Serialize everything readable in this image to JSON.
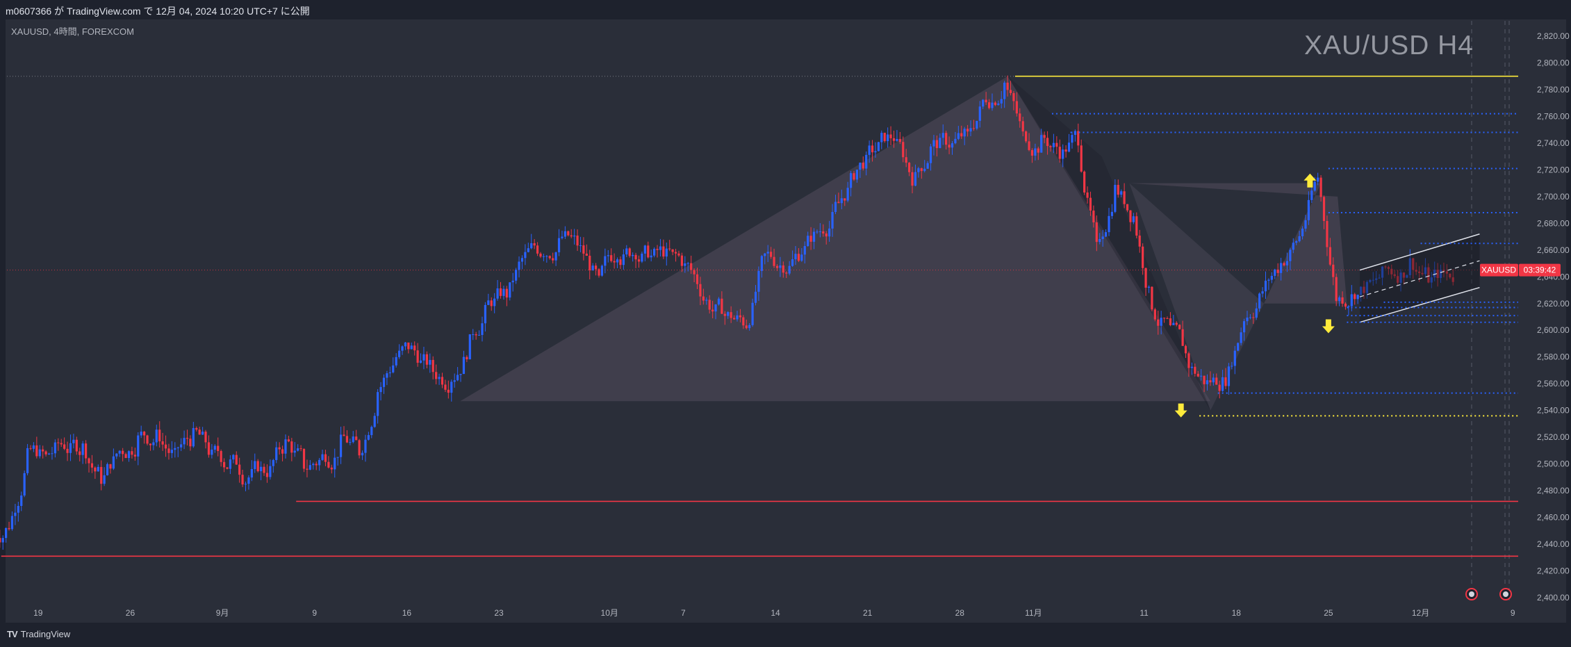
{
  "header": {
    "published": "m0607366 が TradingView.com で 12月 04, 2024 10:20 UTC+7 に公開"
  },
  "chart": {
    "symbol_info": "XAUUSD, 4時間, FOREXCOM",
    "watermark": "XAU/USD H4"
  },
  "price_label": {
    "symbol": "XAUUSD",
    "countdown": "03:39:42",
    "color": "#f23645"
  },
  "footer": {
    "brand": "TradingView",
    "logo_icon": "tradingview-logo-icon"
  },
  "colors": {
    "up": "#2962ff",
    "down": "#f23645",
    "support": "#f23645",
    "resistance": "#ffeb3b",
    "levels": "#2962ff"
  },
  "chart_data": {
    "type": "candlestick",
    "timeframe": "4H",
    "current_price": 2645,
    "ylim": [
      2400,
      2820
    ],
    "y_ticks": [
      "2,820.00",
      "2,800.00",
      "2,780.00",
      "2,760.00",
      "2,740.00",
      "2,720.00",
      "2,700.00",
      "2,680.00",
      "2,660.00",
      "2,640.00",
      "2,620.00",
      "2,600.00",
      "2,580.00",
      "2,560.00",
      "2,540.00",
      "2,520.00",
      "2,500.00",
      "2,480.00",
      "2,460.00",
      "2,440.00",
      "2,420.00",
      "2,400.00"
    ],
    "x_ticks": [
      "19",
      "26",
      "9月",
      "9",
      "16",
      "23",
      "10月",
      "7",
      "14",
      "21",
      "28",
      "11月",
      "11",
      "18",
      "25",
      "12月",
      "9"
    ],
    "approx_daily_closes": [
      [
        "2024-08-15",
        2455
      ],
      [
        "2024-08-16",
        2505
      ],
      [
        "2024-08-19",
        2505
      ],
      [
        "2024-08-20",
        2515
      ],
      [
        "2024-08-21",
        2512
      ],
      [
        "2024-08-22",
        2490
      ],
      [
        "2024-08-23",
        2510
      ],
      [
        "2024-08-26",
        2518
      ],
      [
        "2024-08-27",
        2520
      ],
      [
        "2024-08-28",
        2505
      ],
      [
        "2024-08-29",
        2520
      ],
      [
        "2024-08-30",
        2505
      ],
      [
        "2024-09-02",
        2500
      ],
      [
        "2024-09-03",
        2490
      ],
      [
        "2024-09-04",
        2495
      ],
      [
        "2024-09-05",
        2515
      ],
      [
        "2024-09-06",
        2500
      ],
      [
        "2024-09-09",
        2505
      ],
      [
        "2024-09-10",
        2515
      ],
      [
        "2024-09-11",
        2510
      ],
      [
        "2024-09-12",
        2555
      ],
      [
        "2024-09-13",
        2580
      ],
      [
        "2024-09-16",
        2585
      ],
      [
        "2024-09-17",
        2570
      ],
      [
        "2024-09-18",
        2565
      ],
      [
        "2024-09-19",
        2590
      ],
      [
        "2024-09-20",
        2620
      ],
      [
        "2024-09-23",
        2628
      ],
      [
        "2024-09-24",
        2655
      ],
      [
        "2024-09-25",
        2660
      ],
      [
        "2024-09-26",
        2670
      ],
      [
        "2024-09-27",
        2660
      ],
      [
        "2024-09-30",
        2635
      ],
      [
        "2024-10-01",
        2660
      ],
      [
        "2024-10-02",
        2660
      ],
      [
        "2024-10-03",
        2655
      ],
      [
        "2024-10-04",
        2655
      ],
      [
        "2024-10-07",
        2645
      ],
      [
        "2024-10-08",
        2620
      ],
      [
        "2024-10-09",
        2610
      ],
      [
        "2024-10-10",
        2605
      ],
      [
        "2024-10-11",
        2655
      ],
      [
        "2024-10-14",
        2650
      ],
      [
        "2024-10-15",
        2660
      ],
      [
        "2024-10-16",
        2675
      ],
      [
        "2024-10-17",
        2695
      ],
      [
        "2024-10-18",
        2720
      ],
      [
        "2024-10-21",
        2735
      ],
      [
        "2024-10-22",
        2745
      ],
      [
        "2024-10-23",
        2715
      ],
      [
        "2024-10-24",
        2735
      ],
      [
        "2024-10-25",
        2740
      ],
      [
        "2024-10-28",
        2745
      ],
      [
        "2024-10-29",
        2775
      ],
      [
        "2024-10-30",
        2785
      ],
      [
        "2024-10-31",
        2745
      ],
      [
        "2024-11-01",
        2740
      ],
      [
        "2024-11-04",
        2735
      ],
      [
        "2024-11-05",
        2745
      ],
      [
        "2024-11-06",
        2660
      ],
      [
        "2024-11-07",
        2705
      ],
      [
        "2024-11-08",
        2685
      ],
      [
        "2024-11-11",
        2620
      ],
      [
        "2024-11-12",
        2600
      ],
      [
        "2024-11-13",
        2575
      ],
      [
        "2024-11-14",
        2560
      ],
      [
        "2024-11-15",
        2565
      ],
      [
        "2024-11-18",
        2610
      ],
      [
        "2024-11-19",
        2630
      ],
      [
        "2024-11-20",
        2650
      ],
      [
        "2024-11-21",
        2670
      ],
      [
        "2024-11-22",
        2715
      ],
      [
        "2024-11-25",
        2625
      ],
      [
        "2024-11-26",
        2630
      ],
      [
        "2024-11-27",
        2635
      ],
      [
        "2024-11-28",
        2645
      ],
      [
        "2024-11-29",
        2650
      ],
      [
        "2024-12-02",
        2640
      ],
      [
        "2024-12-03",
        2642
      ],
      [
        "2024-12-04",
        2645
      ]
    ],
    "horizontal_levels": [
      {
        "price": 2790,
        "style": "solid",
        "color": "#ffeb3b",
        "from": "2024-10-31"
      },
      {
        "price": 2762,
        "style": "dotted",
        "color": "#2962ff",
        "from": "2024-11-04"
      },
      {
        "price": 2748,
        "style": "dotted",
        "color": "#2962ff",
        "from": "2024-11-05"
      },
      {
        "price": 2721,
        "style": "dotted",
        "color": "#2962ff",
        "from": "2024-11-25"
      },
      {
        "price": 2688,
        "style": "dotted",
        "color": "#2962ff",
        "from": "2024-11-25"
      },
      {
        "price": 2665,
        "style": "dotted",
        "color": "#2962ff",
        "from": "2024-12-02"
      },
      {
        "price": 2621,
        "style": "dotted",
        "color": "#2962ff",
        "from": "2024-11-28"
      },
      {
        "price": 2617,
        "style": "dotted",
        "color": "#2962ff",
        "from": "2024-11-26"
      },
      {
        "price": 2611,
        "style": "dotted",
        "color": "#2962ff",
        "from": "2024-11-26"
      },
      {
        "price": 2606,
        "style": "dotted",
        "color": "#2962ff",
        "from": "2024-11-26"
      },
      {
        "price": 2553,
        "style": "dotted",
        "color": "#2962ff",
        "from": "2024-11-15"
      },
      {
        "price": 2536,
        "style": "dotted",
        "color": "#ffeb3b",
        "from": "2024-11-14"
      },
      {
        "price": 2472,
        "style": "solid",
        "color": "#f23645",
        "from": "2024-09-06"
      },
      {
        "price": 2431,
        "style": "solid",
        "color": "#f23645",
        "from": "2024-08-15"
      }
    ],
    "arrows": [
      {
        "date": "2024-11-13",
        "price": 2540,
        "direction": "down"
      },
      {
        "date": "2024-11-22",
        "price": 2712,
        "direction": "up"
      },
      {
        "date": "2024-11-25",
        "price": 2603,
        "direction": "down"
      }
    ]
  }
}
